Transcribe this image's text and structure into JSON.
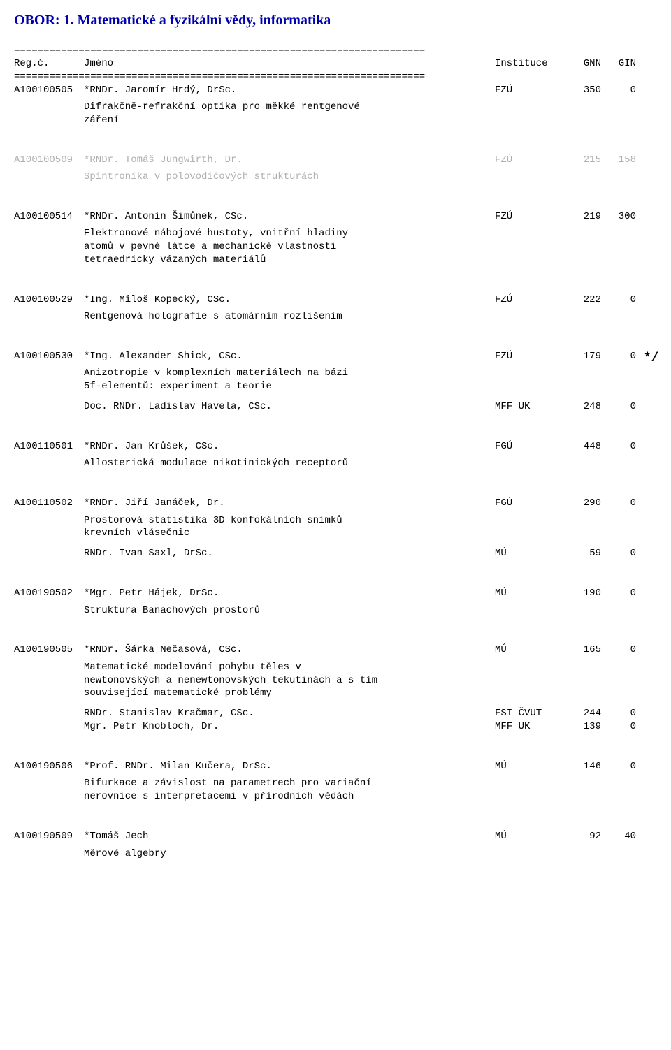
{
  "title": "OBOR:  1.  Matematické a fyzikální vědy, informatika",
  "divider": "======================================================================",
  "header": {
    "reg": "Reg.č.",
    "name": "Jméno",
    "inst": "Instituce",
    "gnn": "GNN",
    "gin": "GIN"
  },
  "entries": [
    {
      "muted": false,
      "line": {
        "reg": "A100100505",
        "name": "*RNDr. Jaromír Hrdý, DrSc.",
        "inst": "FZÚ",
        "gnn": "350",
        "gin": "0",
        "mark": ""
      },
      "desc": [
        "Difrakčně-refrakční optika pro měkké rentgenové",
        "záření"
      ],
      "sublines": []
    },
    {
      "muted": true,
      "line": {
        "reg": "A100100509",
        "name": "*RNDr. Tomáš Jungwirth, Dr.",
        "inst": "FZÚ",
        "gnn": "215",
        "gin": "158",
        "mark": ""
      },
      "desc": [
        "Spintronika v polovodičových strukturách"
      ],
      "sublines": []
    },
    {
      "muted": false,
      "line": {
        "reg": "A100100514",
        "name": "*RNDr. Antonín Šimůnek, CSc.",
        "inst": "FZÚ",
        "gnn": "219",
        "gin": "300",
        "mark": ""
      },
      "desc": [
        "Elektronové nábojové hustoty, vnitřní hladiny",
        "atomů v pevné látce a mechanické vlastnosti",
        "tetraedricky vázaných materiálů"
      ],
      "sublines": []
    },
    {
      "muted": false,
      "line": {
        "reg": "A100100529",
        "name": "*Ing. Miloš Kopecký, CSc.",
        "inst": "FZÚ",
        "gnn": "222",
        "gin": "0",
        "mark": ""
      },
      "desc": [
        "Rentgenová holografie s atomárním rozlišením"
      ],
      "sublines": []
    },
    {
      "muted": false,
      "line": {
        "reg": "A100100530",
        "name": "*Ing. Alexander Shick, CSc.",
        "inst": "FZÚ",
        "gnn": "179",
        "gin": "0",
        "mark": "*/"
      },
      "desc": [
        "Anizotropie v komplexních materiálech na bázi",
        "5f-elementů: experiment a teorie"
      ],
      "sublines": [
        {
          "name": "Doc. RNDr. Ladislav Havela, CSc.",
          "inst": "MFF UK",
          "gnn": "248",
          "gin": "0"
        }
      ]
    },
    {
      "muted": false,
      "line": {
        "reg": "A100110501",
        "name": "*RNDr. Jan Krůšek, CSc.",
        "inst": "FGÚ",
        "gnn": "448",
        "gin": "0",
        "mark": ""
      },
      "desc": [
        "Allosterická modulace nikotinických receptorů"
      ],
      "sublines": []
    },
    {
      "muted": false,
      "line": {
        "reg": "A100110502",
        "name": "*RNDr. Jiří Janáček, Dr.",
        "inst": "FGÚ",
        "gnn": "290",
        "gin": "0",
        "mark": ""
      },
      "desc": [
        "Prostorová statistika 3D konfokálních snímků",
        "krevních vlásečnic"
      ],
      "sublines": [
        {
          "name": "RNDr. Ivan Saxl, DrSc.",
          "inst": "MÚ",
          "gnn": "59",
          "gin": "0"
        }
      ]
    },
    {
      "muted": false,
      "line": {
        "reg": "A100190502",
        "name": "*Mgr. Petr Hájek, DrSc.",
        "inst": "MÚ",
        "gnn": "190",
        "gin": "0",
        "mark": ""
      },
      "desc": [
        "Struktura Banachových prostorů"
      ],
      "sublines": []
    },
    {
      "muted": false,
      "line": {
        "reg": "A100190505",
        "name": "*RNDr. Šárka Nečasová, CSc.",
        "inst": "MÚ",
        "gnn": "165",
        "gin": "0",
        "mark": ""
      },
      "desc": [
        "Matematické modelování pohybu těles v",
        "newtonovských a nenewtonovských tekutinách a s tím",
        "související matematické problémy"
      ],
      "sublines": [
        {
          "name": "RNDr. Stanislav Kračmar, CSc.",
          "inst": "FSI ČVUT",
          "gnn": "244",
          "gin": "0"
        },
        {
          "name": "Mgr. Petr Knobloch, Dr.",
          "inst": "MFF UK",
          "gnn": "139",
          "gin": "0"
        }
      ]
    },
    {
      "muted": false,
      "line": {
        "reg": "A100190506",
        "name": "*Prof. RNDr. Milan Kučera, DrSc.",
        "inst": "MÚ",
        "gnn": "146",
        "gin": "0",
        "mark": ""
      },
      "desc": [
        "Bifurkace a závislost na parametrech pro variační",
        "nerovnice s interpretacemi v přírodních vědách"
      ],
      "sublines": []
    },
    {
      "muted": false,
      "line": {
        "reg": "A100190509",
        "name": "*Tomáš Jech",
        "inst": "MÚ",
        "gnn": "92",
        "gin": "40",
        "mark": ""
      },
      "desc": [
        "Měrové algebry"
      ],
      "sublines": []
    }
  ]
}
